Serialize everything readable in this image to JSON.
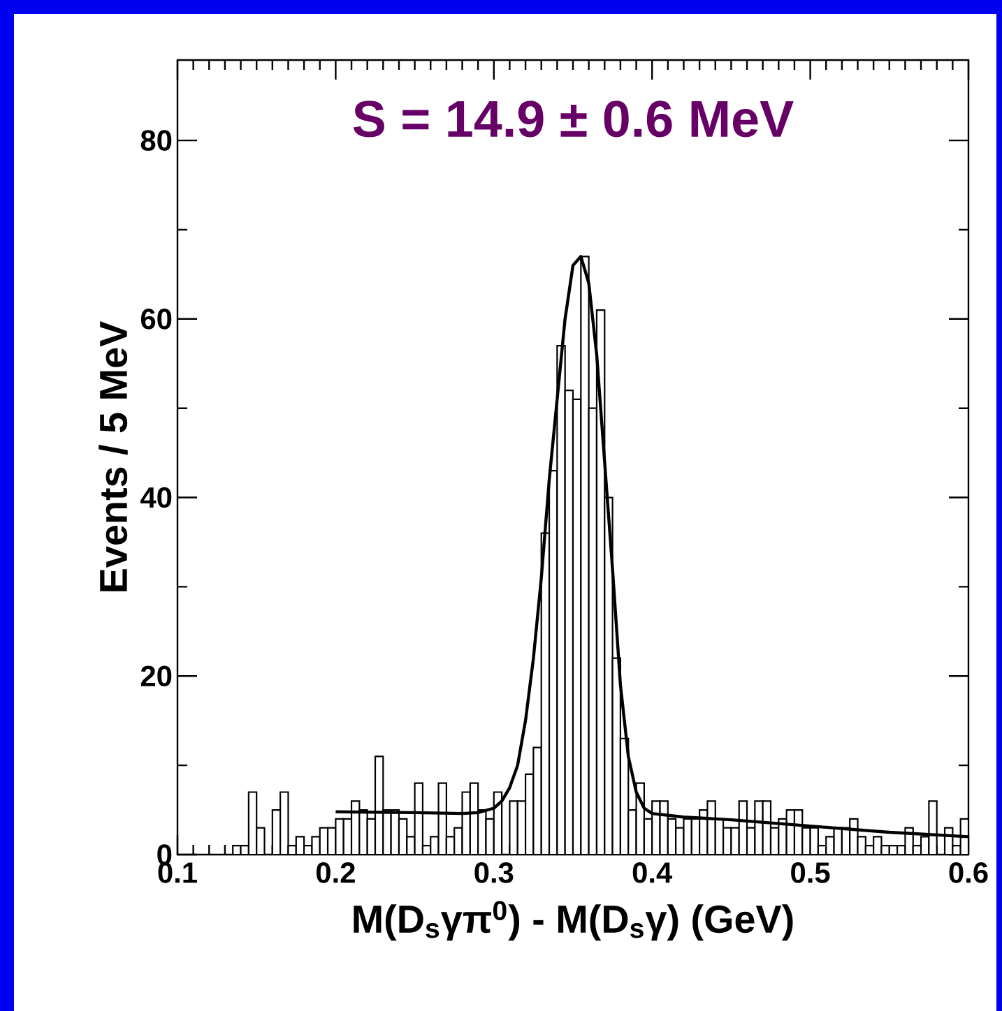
{
  "chart_data": {
    "type": "histogram",
    "xlabel": "M(D$_{s}$γπ$^{0}$) - M(D$_{s}$γ) (GeV)",
    "ylabel": "Events / 5 MeV",
    "annotations": [
      "S = 14.9 ± 0.6 MeV"
    ],
    "xlim": [
      0.1,
      0.6
    ],
    "ylim": [
      0,
      89
    ],
    "xticks": [
      0.1,
      0.2,
      0.3,
      0.4,
      0.5,
      0.6
    ],
    "yticks": [
      0,
      20,
      40,
      60,
      80
    ],
    "grid": false,
    "color": "#000000",
    "bins": [
      0.1,
      0.105,
      0.11,
      0.115,
      0.12,
      0.125,
      0.13,
      0.135,
      0.14,
      0.145,
      0.15,
      0.155,
      0.16,
      0.165,
      0.17,
      0.175,
      0.18,
      0.185,
      0.19,
      0.195,
      0.2,
      0.205,
      0.21,
      0.215,
      0.22,
      0.225,
      0.23,
      0.235,
      0.24,
      0.245,
      0.25,
      0.255,
      0.26,
      0.265,
      0.27,
      0.275,
      0.28,
      0.285,
      0.29,
      0.295,
      0.3,
      0.305,
      0.31,
      0.315,
      0.32,
      0.325,
      0.33,
      0.335,
      0.34,
      0.345,
      0.35,
      0.355,
      0.36,
      0.365,
      0.37,
      0.375,
      0.38,
      0.385,
      0.39,
      0.395,
      0.4,
      0.405,
      0.41,
      0.415,
      0.42,
      0.425,
      0.43,
      0.435,
      0.44,
      0.445,
      0.45,
      0.455,
      0.46,
      0.465,
      0.47,
      0.475,
      0.48,
      0.485,
      0.49,
      0.495,
      0.5,
      0.505,
      0.51,
      0.515,
      0.52,
      0.525,
      0.53,
      0.535,
      0.54,
      0.545,
      0.55,
      0.555,
      0.56,
      0.565,
      0.57,
      0.575,
      0.58,
      0.585,
      0.59,
      0.595,
      0.6
    ],
    "values": [
      0,
      0,
      0,
      0,
      0,
      0,
      0,
      1,
      1,
      7,
      3,
      0,
      5,
      7,
      1,
      2,
      1,
      2,
      3,
      3,
      4,
      4,
      6,
      5,
      4,
      11,
      5,
      5,
      4,
      2,
      8,
      1,
      2,
      8,
      2,
      3,
      7,
      8,
      5,
      4,
      7,
      0,
      6,
      6,
      9,
      12,
      36,
      43,
      57,
      52,
      51,
      67,
      50,
      61,
      40,
      22,
      13,
      5,
      8,
      4,
      6,
      6,
      4,
      3,
      4,
      4,
      5,
      6,
      4,
      3,
      3,
      6,
      3,
      6,
      6,
      3,
      4,
      5,
      5,
      3,
      3,
      1,
      2,
      3,
      3,
      4,
      2,
      1,
      2,
      1,
      1,
      1,
      3,
      1,
      2,
      6,
      0,
      3,
      1,
      4
    ],
    "series": [
      {
        "type": "line",
        "color": "#000000",
        "x": [
          0.2,
          0.25,
          0.28,
          0.29,
          0.3,
          0.305,
          0.31,
          0.315,
          0.32,
          0.325,
          0.33,
          0.335,
          0.34,
          0.345,
          0.35,
          0.355,
          0.36,
          0.365,
          0.37,
          0.375,
          0.38,
          0.385,
          0.39,
          0.395,
          0.4,
          0.42,
          0.45,
          0.5,
          0.55,
          0.6
        ],
        "values": [
          4.8,
          4.7,
          4.6,
          4.7,
          5.2,
          6,
          7.5,
          10,
          15,
          22,
          31,
          42,
          51,
          60,
          66,
          67,
          64,
          56,
          44,
          32,
          19,
          11,
          7,
          5.2,
          4.6,
          4.2,
          3.9,
          3.2,
          2.5,
          2
        ]
      }
    ]
  }
}
